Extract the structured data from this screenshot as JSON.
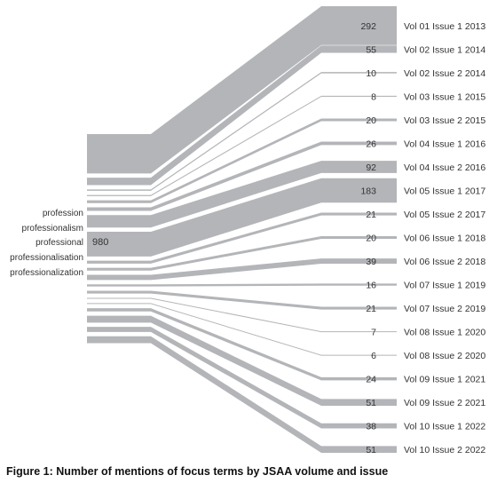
{
  "chart_data": {
    "type": "sankey",
    "source_terms": [
      "profession",
      "professionalism",
      "professional",
      "professionalisation",
      "professionalization"
    ],
    "total": 980,
    "flows": [
      {
        "label": "Vol 01 Issue 1 2013",
        "value": 292
      },
      {
        "label": "Vol 02 Issue 1 2014",
        "value": 55
      },
      {
        "label": "Vol 02 Issue 2 2014",
        "value": 10
      },
      {
        "label": "Vol 03 Issue 1 2015",
        "value": 8
      },
      {
        "label": "Vol 03 Issue 2 2015",
        "value": 20
      },
      {
        "label": "Vol 04 Issue 1 2016",
        "value": 26
      },
      {
        "label": "Vol 04 Issue 2 2016",
        "value": 92
      },
      {
        "label": "Vol 05 Issue 1 2017",
        "value": 183
      },
      {
        "label": "Vol 05 Issue 2 2017",
        "value": 21
      },
      {
        "label": "Vol 06 Issue 1 2018",
        "value": 20
      },
      {
        "label": "Vol 06 Issue 2 2018",
        "value": 39
      },
      {
        "label": "Vol 07 Issue 1 2019",
        "value": 16
      },
      {
        "label": "Vol 07 Issue 2 2019",
        "value": 21
      },
      {
        "label": "Vol 08 Issue 1 2020",
        "value": 7
      },
      {
        "label": "Vol 08 Issue 2 2020",
        "value": 6
      },
      {
        "label": "Vol 09 Issue 1 2021",
        "value": 24
      },
      {
        "label": "Vol 09 Issue 2 2021",
        "value": 51
      },
      {
        "label": "Vol 10 Issue 1 2022",
        "value": 38
      },
      {
        "label": "Vol 10 Issue 2 2022",
        "value": 51
      }
    ],
    "colors": {
      "flow": "#b3b5b8",
      "text": "#333333"
    }
  },
  "caption": "Figure 1: Number of mentions of focus terms by JSAA volume and issue"
}
